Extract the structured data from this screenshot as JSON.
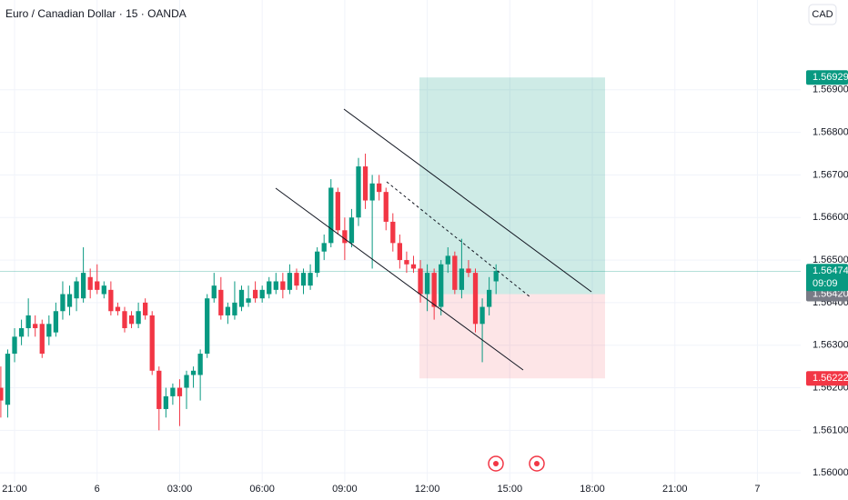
{
  "chart_data": {
    "type": "candlestick",
    "title": "Euro / Canadian Dollar · 15 · OANDA",
    "currency": "CAD",
    "up_color": "#089981",
    "down_color": "#f23645",
    "grid": true,
    "xlim": [
      -0.12,
      116.29
    ],
    "xticks": [
      {
        "value": 2,
        "label": "21:00"
      },
      {
        "value": 14,
        "label": "6"
      },
      {
        "value": 26,
        "label": "03:00"
      },
      {
        "value": 38,
        "label": "06:00"
      },
      {
        "value": 50,
        "label": "09:00"
      },
      {
        "value": 62,
        "label": "12:00"
      },
      {
        "value": 74,
        "label": "15:00"
      },
      {
        "value": 86,
        "label": "18:00"
      },
      {
        "value": 98,
        "label": "21:00"
      },
      {
        "value": 110,
        "label": "7"
      }
    ],
    "ylim": [
      1.55979,
      1.57111
    ],
    "yticks": [
      {
        "value": 1.56,
        "label": "1.56000"
      },
      {
        "value": 1.561,
        "label": "1.56100"
      },
      {
        "value": 1.562,
        "label": "1.56200"
      },
      {
        "value": 1.563,
        "label": "1.56300"
      },
      {
        "value": 1.564,
        "label": "1.56400"
      },
      {
        "value": 1.565,
        "label": "1.56500"
      },
      {
        "value": 1.566,
        "label": "1.56600"
      },
      {
        "value": 1.567,
        "label": "1.56700"
      },
      {
        "value": 1.568,
        "label": "1.56800"
      },
      {
        "value": 1.569,
        "label": "1.56900"
      }
    ],
    "open": [
      1.562,
      1.5616,
      1.5628,
      1.5632,
      1.5634,
      1.5635,
      1.5635,
      1.5632,
      1.5633,
      1.5638,
      1.5639,
      1.5641,
      1.5641,
      1.5646,
      1.5645,
      1.5642,
      1.5643,
      1.5639,
      1.5638,
      1.5637,
      1.5635,
      1.564,
      1.5637,
      1.5624,
      1.5615,
      1.5618,
      1.562,
      1.562,
      1.5623,
      1.5623,
      1.5628,
      1.5641,
      1.5643,
      1.5637,
      1.5637,
      1.5639,
      1.564,
      1.5643,
      1.5641,
      1.5642,
      1.5643,
      1.5645,
      1.5643,
      1.5647,
      1.5644,
      1.5644,
      1.5647,
      1.5652,
      1.5654,
      1.5666,
      1.5657,
      1.5654,
      1.566,
      1.5672,
      1.5664,
      1.5668,
      1.5666,
      1.5659,
      1.5654,
      1.565,
      1.5649,
      1.5648,
      1.5642,
      1.5647,
      1.5639,
      1.5649,
      1.5651,
      1.5643,
      1.5648,
      1.5647,
      1.5635,
      1.5639,
      1.5645
    ],
    "high": [
      1.5625,
      1.5629,
      1.5634,
      1.5636,
      1.5641,
      1.5637,
      1.5636,
      1.5637,
      1.564,
      1.5645,
      1.5644,
      1.5646,
      1.5653,
      1.5648,
      1.5649,
      1.5645,
      1.5645,
      1.564,
      1.5639,
      1.5638,
      1.564,
      1.5641,
      1.5638,
      1.5625,
      1.562,
      1.5621,
      1.5622,
      1.5624,
      1.5625,
      1.5629,
      1.5642,
      1.5647,
      1.5646,
      1.564,
      1.5645,
      1.5644,
      1.5644,
      1.5645,
      1.5644,
      1.5646,
      1.5647,
      1.5647,
      1.5649,
      1.5648,
      1.5648,
      1.5649,
      1.5653,
      1.5656,
      1.5669,
      1.5667,
      1.566,
      1.5662,
      1.5674,
      1.5675,
      1.567,
      1.567,
      1.5667,
      1.5661,
      1.5656,
      1.5652,
      1.5651,
      1.565,
      1.5649,
      1.5648,
      1.565,
      1.5653,
      1.5652,
      1.5655,
      1.565,
      1.5648,
      1.5641,
      1.5646,
      1.5649
    ],
    "low": [
      1.5613,
      1.5613,
      1.5626,
      1.563,
      1.5632,
      1.5632,
      1.5627,
      1.563,
      1.5632,
      1.5636,
      1.5637,
      1.5638,
      1.564,
      1.5641,
      1.5642,
      1.5641,
      1.5637,
      1.5637,
      1.5633,
      1.5634,
      1.5634,
      1.5636,
      1.5623,
      1.561,
      1.5613,
      1.5616,
      1.5611,
      1.5615,
      1.562,
      1.5617,
      1.5627,
      1.564,
      1.5636,
      1.5635,
      1.5636,
      1.5638,
      1.5639,
      1.564,
      1.564,
      1.5641,
      1.5642,
      1.5641,
      1.5642,
      1.5643,
      1.5642,
      1.5643,
      1.5646,
      1.565,
      1.5653,
      1.5656,
      1.565,
      1.5653,
      1.5658,
      1.5662,
      1.5648,
      1.5664,
      1.5657,
      1.5652,
      1.5648,
      1.5647,
      1.5647,
      1.564,
      1.5638,
      1.5636,
      1.5637,
      1.5647,
      1.5642,
      1.5641,
      1.5646,
      1.5633,
      1.5626,
      1.5637,
      1.5642
    ],
    "close": [
      1.5617,
      1.5628,
      1.5632,
      1.5634,
      1.5637,
      1.5634,
      1.5628,
      1.5635,
      1.5638,
      1.5642,
      1.5642,
      1.5645,
      1.5647,
      1.5643,
      1.5643,
      1.5644,
      1.5638,
      1.5638,
      1.5634,
      1.5635,
      1.5638,
      1.5637,
      1.5624,
      1.5615,
      1.5618,
      1.562,
      1.5618,
      1.5623,
      1.5624,
      1.5628,
      1.5641,
      1.5644,
      1.5637,
      1.5639,
      1.564,
      1.5643,
      1.5641,
      1.5641,
      1.5643,
      1.5645,
      1.5645,
      1.5643,
      1.5647,
      1.5644,
      1.5647,
      1.5647,
      1.5652,
      1.5654,
      1.5667,
      1.5657,
      1.5654,
      1.566,
      1.5672,
      1.5664,
      1.5668,
      1.5666,
      1.5659,
      1.5654,
      1.565,
      1.5649,
      1.5648,
      1.5642,
      1.5647,
      1.5639,
      1.5649,
      1.5651,
      1.5643,
      1.5648,
      1.5647,
      1.5635,
      1.5639,
      1.5643,
      1.56474
    ],
    "last_price": 1.56474,
    "countdown": "09:09",
    "position": {
      "target": 1.56929,
      "entry": {
        "value": 1.5642,
        "label": "1.56420"
      },
      "stop": 1.56222
    }
  }
}
